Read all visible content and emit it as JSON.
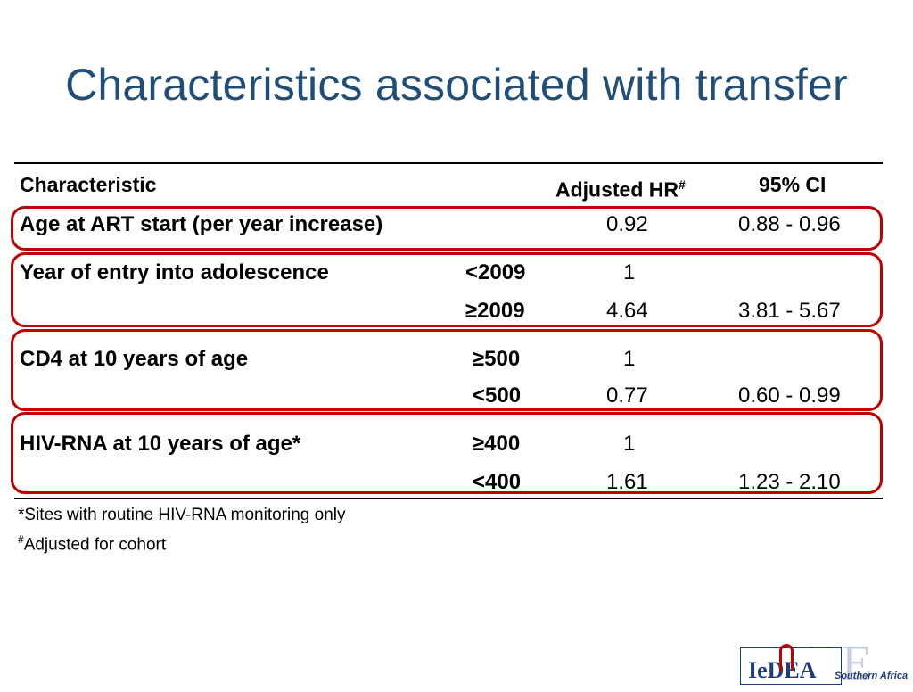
{
  "slide": {
    "title": "Characteristics associated with transfer"
  },
  "table": {
    "headers": {
      "characteristic": "Characteristic",
      "hr": "Adjusted HR",
      "hr_sup": "#",
      "ci": "95% CI"
    },
    "rows": [
      {
        "characteristic": "Age at ART start (per year increase)",
        "level": "",
        "hr": "0.92",
        "ci": "0.88 - 0.96"
      },
      {
        "characteristic": "Year of entry into adolescence",
        "level": "<2009",
        "hr": "1",
        "ci": ""
      },
      {
        "characteristic": "",
        "level": "≥2009",
        "hr": "4.64",
        "ci": "3.81 - 5.67"
      },
      {
        "characteristic": "CD4 at 10 years of age",
        "level": "≥500",
        "hr": "1",
        "ci": ""
      },
      {
        "characteristic": "",
        "level": "<500",
        "hr": "0.77",
        "ci": "0.60 - 0.99"
      },
      {
        "characteristic": "HIV-RNA at 10 years of age*",
        "level": "≥400",
        "hr": "1",
        "ci": ""
      },
      {
        "characteristic": "",
        "level": "<400",
        "hr": "1.61",
        "ci": "1.23 - 2.10"
      }
    ],
    "highlight_color": "#c00000"
  },
  "footnotes": {
    "sites": "*Sites with routine HIV-RNA monitoring only",
    "adjusted_sup": "#",
    "adjusted": "Adjusted for cohort"
  },
  "logo": {
    "name": "IeDEA",
    "region": "Southern Africa"
  },
  "colors": {
    "title": "#1f4e79",
    "highlight": "#c00000"
  }
}
